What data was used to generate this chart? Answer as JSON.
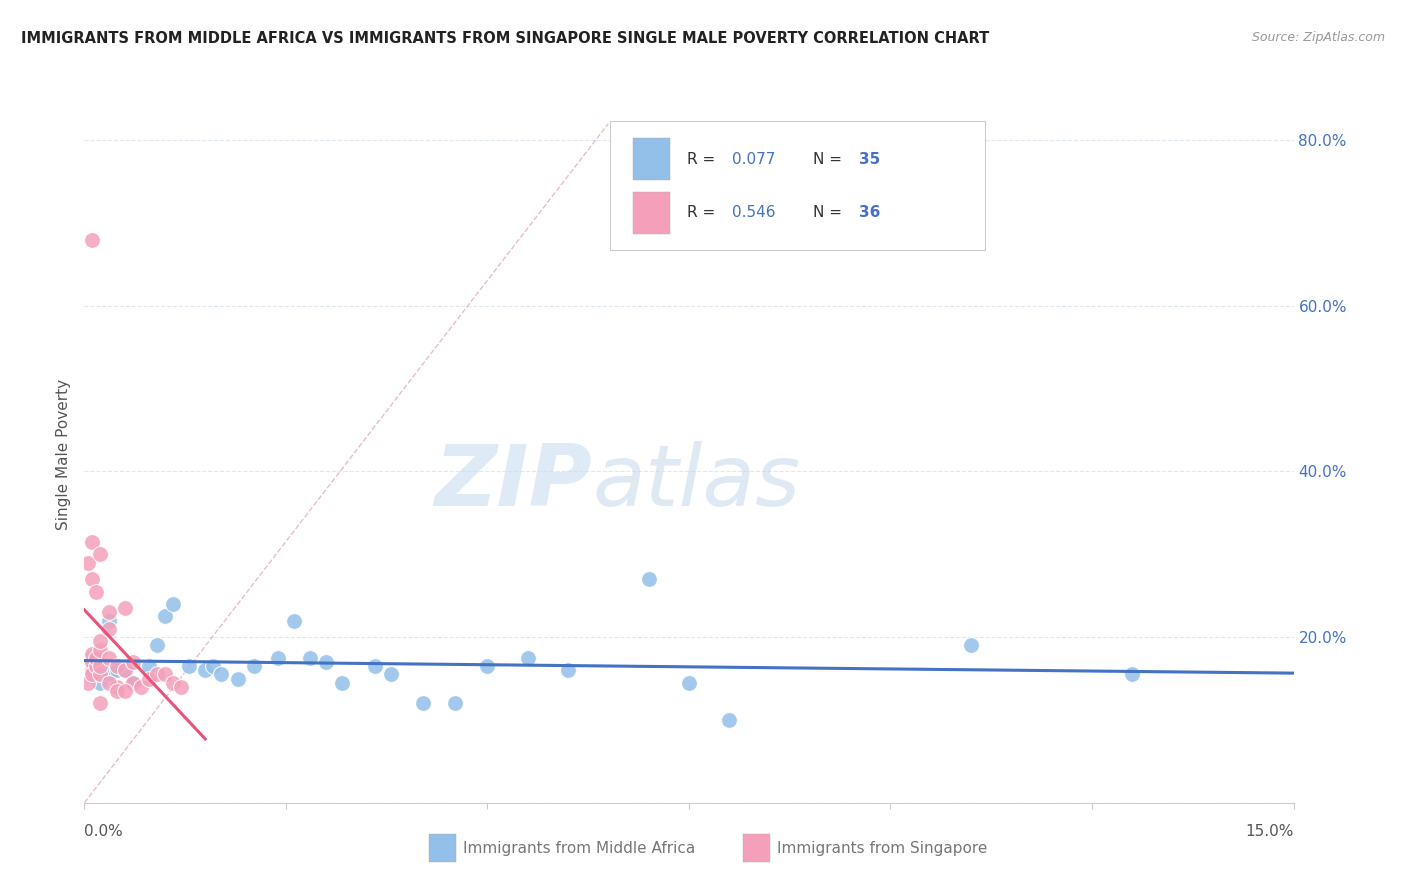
{
  "title": "IMMIGRANTS FROM MIDDLE AFRICA VS IMMIGRANTS FROM SINGAPORE SINGLE MALE POVERTY CORRELATION CHART",
  "source": "Source: ZipAtlas.com",
  "ylabel": "Single Male Poverty",
  "xlim": [
    0.0,
    0.15
  ],
  "ylim": [
    0.0,
    0.84
  ],
  "color_blue": "#92C0E8",
  "color_pink": "#F4A0BA",
  "color_blue_line": "#4472C4",
  "color_pink_line": "#E8537A",
  "color_blue_text": "#4472C4",
  "color_ref_line": "#D4A0A8",
  "watermark_zip": "ZIP",
  "watermark_atlas": "atlas",
  "blue_x": [
    0.001,
    0.002,
    0.003,
    0.001,
    0.004,
    0.003,
    0.005,
    0.006,
    0.008,
    0.009,
    0.01,
    0.011,
    0.013,
    0.015,
    0.016,
    0.017,
    0.019,
    0.021,
    0.024,
    0.026,
    0.028,
    0.03,
    0.032,
    0.036,
    0.038,
    0.042,
    0.046,
    0.05,
    0.055,
    0.06,
    0.07,
    0.08,
    0.11,
    0.13,
    0.075
  ],
  "blue_y": [
    0.155,
    0.145,
    0.155,
    0.175,
    0.16,
    0.22,
    0.16,
    0.145,
    0.165,
    0.19,
    0.225,
    0.24,
    0.165,
    0.16,
    0.165,
    0.155,
    0.15,
    0.165,
    0.175,
    0.22,
    0.175,
    0.17,
    0.145,
    0.165,
    0.155,
    0.12,
    0.12,
    0.165,
    0.175,
    0.16,
    0.27,
    0.1,
    0.19,
    0.155,
    0.145
  ],
  "pink_x": [
    0.0005,
    0.001,
    0.001,
    0.001,
    0.001,
    0.0015,
    0.0015,
    0.002,
    0.002,
    0.002,
    0.002,
    0.003,
    0.003,
    0.003,
    0.004,
    0.004,
    0.005,
    0.005,
    0.006,
    0.006,
    0.007,
    0.008,
    0.009,
    0.01,
    0.011,
    0.012,
    0.0005,
    0.001,
    0.001,
    0.0015,
    0.002,
    0.003,
    0.004,
    0.005,
    0.001,
    0.002
  ],
  "pink_y": [
    0.145,
    0.16,
    0.17,
    0.18,
    0.155,
    0.165,
    0.175,
    0.155,
    0.165,
    0.185,
    0.195,
    0.175,
    0.21,
    0.23,
    0.165,
    0.14,
    0.235,
    0.16,
    0.17,
    0.145,
    0.14,
    0.15,
    0.155,
    0.155,
    0.145,
    0.14,
    0.29,
    0.315,
    0.27,
    0.255,
    0.12,
    0.145,
    0.135,
    0.135,
    0.68,
    0.3
  ],
  "ytick_positions": [
    0.0,
    0.2,
    0.4,
    0.6,
    0.8
  ],
  "ytick_labels_right": [
    "",
    "20.0%",
    "40.0%",
    "60.0%",
    "80.0%"
  ]
}
